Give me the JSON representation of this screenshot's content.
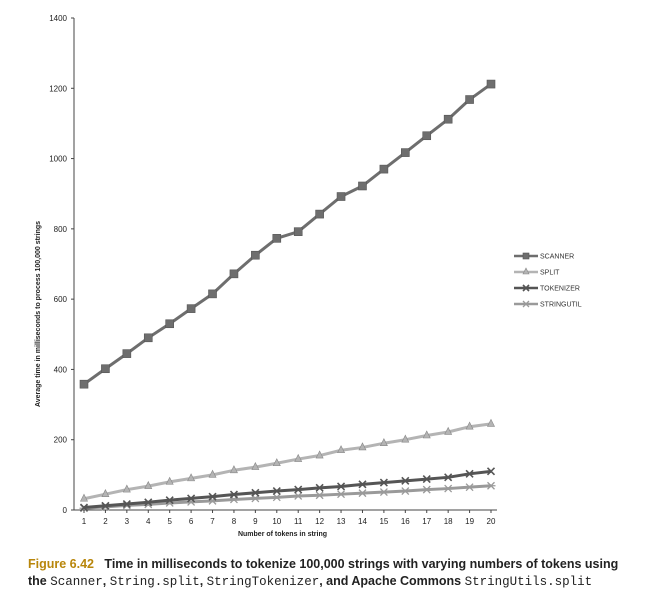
{
  "chart_data": {
    "type": "line",
    "title": "",
    "xlabel": "Number of tokens in string",
    "ylabel": "Average time in milliseconds to process 100,000 strings",
    "x": [
      1,
      2,
      3,
      4,
      5,
      6,
      7,
      8,
      9,
      10,
      11,
      12,
      13,
      14,
      15,
      16,
      17,
      18,
      19,
      20
    ],
    "ylim": [
      0,
      1400
    ],
    "yticks": [
      0,
      200,
      400,
      600,
      800,
      1000,
      1200,
      1400
    ],
    "grid": false,
    "legend_position": "right",
    "series": [
      {
        "name": "SCANNER",
        "marker": "square",
        "color": "#6e6e6e",
        "values": [
          358,
          402,
          445,
          490,
          530,
          573,
          615,
          672,
          725,
          773,
          792,
          842,
          892,
          922,
          970,
          1017,
          1065,
          1112,
          1168,
          1212
        ]
      },
      {
        "name": "SPLIT",
        "marker": "triangle",
        "color": "#b4b4b4",
        "values": [
          32,
          45,
          58,
          68,
          80,
          90,
          100,
          113,
          122,
          133,
          145,
          155,
          170,
          178,
          190,
          200,
          212,
          222,
          237,
          245
        ]
      },
      {
        "name": "TOKENIZER",
        "marker": "x",
        "color": "#555555",
        "values": [
          7,
          12,
          17,
          22,
          28,
          33,
          38,
          44,
          49,
          54,
          58,
          63,
          67,
          73,
          78,
          83,
          88,
          93,
          103,
          110
        ]
      },
      {
        "name": "STRINGUTIL",
        "marker": "star",
        "color": "#9a9a9a",
        "values": [
          5,
          9,
          13,
          16,
          20,
          23,
          26,
          30,
          33,
          36,
          40,
          42,
          45,
          48,
          51,
          54,
          58,
          61,
          65,
          69
        ]
      }
    ]
  },
  "caption": {
    "figure_label": "Figure 6.42",
    "text_before": "Time in milliseconds to tokenize 100,000 strings with varying numbers of tokens using the ",
    "code_scanner": "Scanner",
    "sep1": ", ",
    "code_split": "String.split",
    "sep2": ", ",
    "code_tokenizer": "StringTokenizer",
    "text_mid": ", and Apache Commons ",
    "code_stringutils": "StringUtils.split"
  }
}
